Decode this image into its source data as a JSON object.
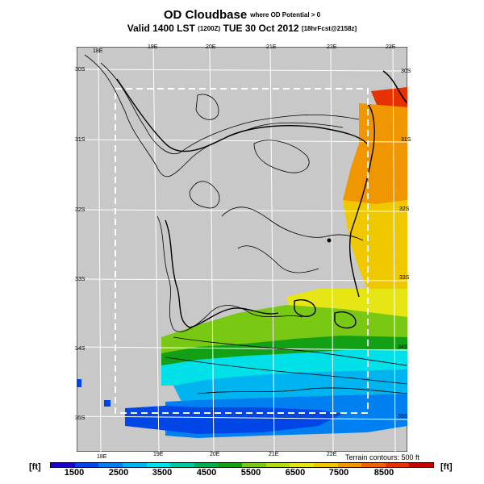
{
  "title": {
    "main": "OD Cloudbase",
    "sub": "where OD Potential > 0",
    "valid_prefix": "Valid 1400 LST",
    "valid_run": "(1200Z)",
    "valid_date": "TUE 30 Oct 2012",
    "valid_suffix": "[18hrFcst@2158z]"
  },
  "map": {
    "top_lon_labels": [
      "18E",
      "19E",
      "20E",
      "21E",
      "22E",
      "23E"
    ],
    "bottom_lon_labels": [
      "18E",
      "19E",
      "20E",
      "21E",
      "22E"
    ],
    "left_lat_labels": [
      "30S",
      "31S",
      "32S",
      "33S",
      "34S",
      "35S"
    ],
    "right_lat_labels": [
      "30S",
      "31S",
      "32S",
      "33S",
      "34S",
      "35S"
    ],
    "terrain_note": "Terrain contours: 500 ft",
    "background_color": "#c8c8c8",
    "grid_color": "#ffffff"
  },
  "colorbar": {
    "unit_left": "[ft]",
    "unit_right": "[ft]",
    "labels": [
      "1500",
      "2500",
      "3500",
      "4500",
      "5500",
      "6500",
      "7500",
      "8500"
    ],
    "colors": [
      "#1a00c8",
      "#0046e6",
      "#0080f0",
      "#00b4f0",
      "#00e0e8",
      "#00c8a0",
      "#00b050",
      "#14a014",
      "#78c814",
      "#b4dc14",
      "#e6e614",
      "#f0c800",
      "#f09600",
      "#f06400",
      "#e63200",
      "#c80000"
    ]
  }
}
